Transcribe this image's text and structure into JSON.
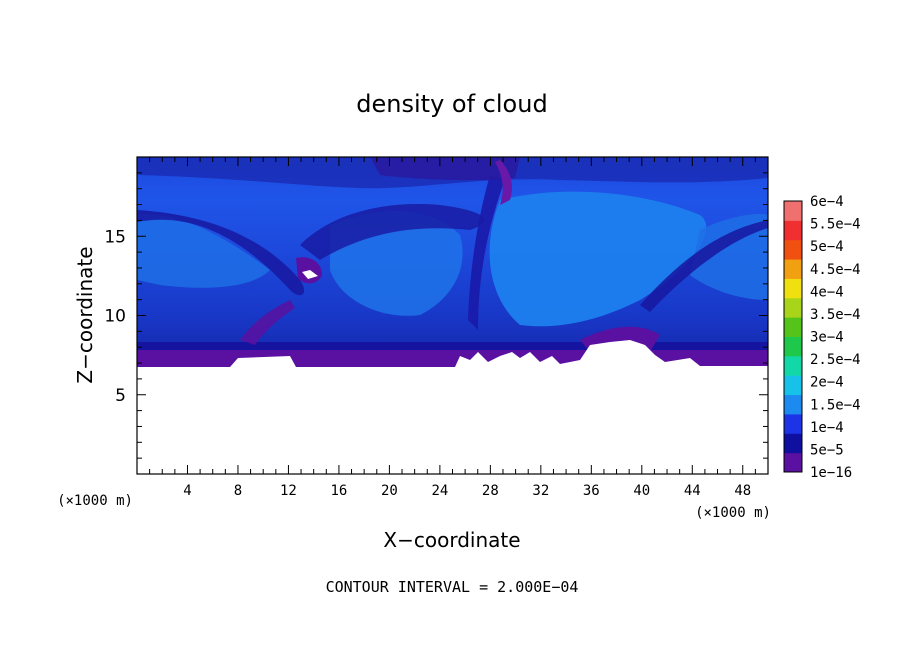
{
  "chart_data": {
    "type": "heatmap",
    "title": "density of cloud",
    "xlabel": "X−coordinate",
    "ylabel": "Z−coordinate",
    "x_unit": "(×1000 m)",
    "z_unit": "(×1000 m)",
    "xlim": [
      0,
      50
    ],
    "ylim": [
      0,
      20
    ],
    "x_ticks": [
      4,
      8,
      12,
      16,
      20,
      24,
      28,
      32,
      36,
      40,
      44,
      48
    ],
    "y_ticks": [
      5,
      10,
      15
    ],
    "contour_interval_label": "CONTOUR INTERVAL = 2.000E−04",
    "colorbar": {
      "labels": [
        "1e−16",
        "5e−5",
        "1e−4",
        "1.5e−4",
        "2e−4",
        "2.5e−4",
        "3e−4",
        "3.5e−4",
        "4e−4",
        "4.5e−4",
        "5e−4",
        "5.5e−4",
        "6e−4"
      ],
      "colors": [
        "#5a10a0",
        "#1010a0",
        "#1c34e6",
        "#1d8af0",
        "#17c2e8",
        "#12d8a8",
        "#1ec84a",
        "#55c41a",
        "#a8d41a",
        "#f0e010",
        "#f0a010",
        "#f05010",
        "#f03030",
        "#f07070"
      ]
    },
    "cloud_base_z": 6.7,
    "background_field": "#1c3fd8"
  }
}
